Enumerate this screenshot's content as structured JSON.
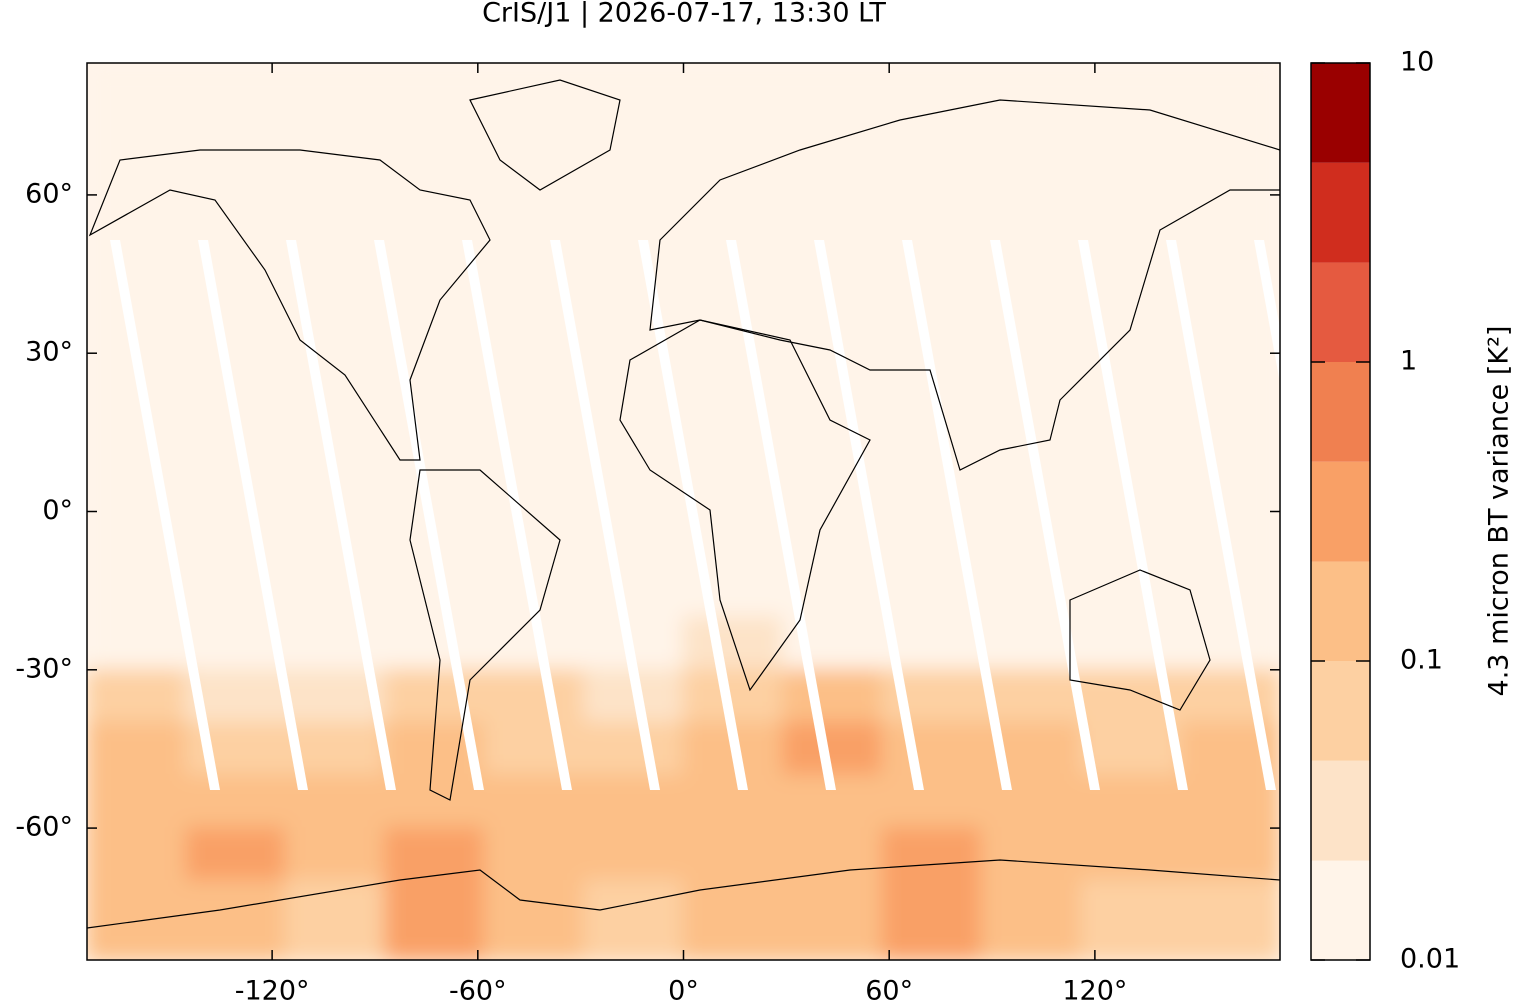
{
  "chart_data": {
    "type": "map-grid",
    "title": "CrIS/J1 | 2026-07-17, 13:30 LT",
    "colorbar_label": "4.3 micron BT variance [K²]",
    "xlim": [
      -174,
      174
    ],
    "ylim": [
      -85,
      85
    ],
    "xticks": [
      {
        "value": -120,
        "label": "-120°"
      },
      {
        "value": -60,
        "label": "-60°"
      },
      {
        "value": 0,
        "label": "0°"
      },
      {
        "value": 60,
        "label": "60°"
      },
      {
        "value": 120,
        "label": "120°"
      }
    ],
    "yticks": [
      {
        "value": -60,
        "label": "-60°"
      },
      {
        "value": -30,
        "label": "-30°"
      },
      {
        "value": 0,
        "label": "0°"
      },
      {
        "value": 30,
        "label": "30°"
      },
      {
        "value": 60,
        "label": "60°"
      }
    ],
    "colorbar": {
      "log_scale": true,
      "lim": [
        0.01,
        10
      ],
      "ticks": [
        0.01,
        0.1,
        1,
        10
      ],
      "levels": [
        0.01,
        0.0215,
        0.0464,
        0.1,
        0.215,
        0.464,
        1,
        2.15,
        4.64,
        10
      ],
      "colors": [
        "#fff4e9",
        "#fde3c8",
        "#fdd0a2",
        "#fcbf87",
        "#f9a066",
        "#f08050",
        "#e55a40",
        "#d02d1e",
        "#9a0000"
      ]
    },
    "lon_edges": [
      -174,
      -145,
      -116,
      -87,
      -58,
      -29,
      0,
      29,
      58,
      87,
      116,
      145,
      174
    ],
    "lat_edges": [
      85,
      60,
      30,
      0,
      -20,
      -30,
      -40,
      -50,
      -60,
      -70,
      -85
    ],
    "values": [
      [
        0.012,
        0.012,
        0.012,
        0.012,
        0.012,
        0.012,
        0.012,
        0.012,
        0.012,
        0.012,
        0.012,
        0.012
      ],
      [
        0.012,
        0.012,
        0.012,
        0.012,
        0.012,
        0.012,
        0.013,
        0.013,
        0.012,
        0.012,
        0.012,
        0.012
      ],
      [
        0.012,
        0.012,
        0.012,
        0.012,
        0.012,
        0.012,
        0.013,
        0.012,
        0.012,
        0.012,
        0.012,
        0.012
      ],
      [
        0.012,
        0.012,
        0.012,
        0.012,
        0.012,
        0.012,
        0.012,
        0.012,
        0.012,
        0.012,
        0.012,
        0.012
      ],
      [
        0.015,
        0.015,
        0.015,
        0.015,
        0.015,
        0.015,
        0.03,
        0.015,
        0.015,
        0.015,
        0.015,
        0.015
      ],
      [
        0.05,
        0.04,
        0.04,
        0.06,
        0.05,
        0.04,
        0.08,
        0.15,
        0.06,
        0.05,
        0.05,
        0.06
      ],
      [
        0.1,
        0.08,
        0.06,
        0.15,
        0.08,
        0.07,
        0.12,
        0.25,
        0.12,
        0.1,
        0.08,
        0.12
      ],
      [
        0.15,
        0.1,
        0.1,
        0.12,
        0.1,
        0.1,
        0.15,
        0.15,
        0.2,
        0.15,
        0.1,
        0.12
      ],
      [
        0.12,
        0.25,
        0.15,
        0.3,
        0.2,
        0.15,
        0.15,
        0.2,
        0.25,
        0.2,
        0.12,
        0.1
      ],
      [
        0.1,
        0.2,
        0.08,
        0.25,
        0.1,
        0.08,
        0.1,
        0.15,
        0.35,
        0.12,
        0.08,
        0.08
      ]
    ]
  }
}
